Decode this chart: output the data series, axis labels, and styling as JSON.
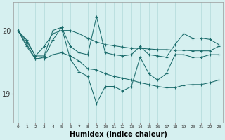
{
  "xlabel": "Humidex (Indice chaleur)",
  "bg_color": "#d6f0f0",
  "grid_color": "#b8dede",
  "line_color": "#1a6b6b",
  "xlim": [
    -0.5,
    23.5
  ],
  "ylim": [
    18.55,
    20.45
  ],
  "yticks": [
    19,
    20
  ],
  "xticks": [
    0,
    1,
    2,
    3,
    4,
    5,
    6,
    7,
    8,
    9,
    10,
    11,
    12,
    13,
    14,
    15,
    16,
    17,
    18,
    19,
    20,
    21,
    22,
    23
  ],
  "series": [
    [
      20.0,
      19.85,
      19.6,
      19.75,
      19.95,
      20.0,
      20.0,
      19.95,
      19.88,
      19.82,
      19.78,
      19.76,
      19.74,
      19.72,
      19.72,
      19.71,
      19.7,
      19.7,
      19.69,
      19.69,
      19.68,
      19.68,
      19.68,
      19.75
    ],
    [
      20.0,
      19.82,
      19.6,
      19.6,
      20.0,
      20.05,
      19.75,
      19.65,
      19.62,
      20.22,
      19.65,
      19.62,
      19.6,
      19.62,
      19.75,
      19.62,
      19.6,
      19.58,
      19.78,
      19.95,
      19.88,
      19.88,
      19.86,
      19.78
    ],
    [
      20.0,
      19.75,
      19.55,
      19.58,
      19.85,
      20.05,
      19.55,
      19.35,
      19.28,
      18.85,
      19.12,
      19.12,
      19.05,
      19.12,
      19.58,
      19.32,
      19.22,
      19.32,
      19.62,
      19.62,
      19.58,
      19.58,
      19.62,
      19.62
    ],
    [
      20.0,
      19.78,
      19.56,
      19.55,
      19.62,
      19.65,
      19.6,
      19.52,
      19.4,
      19.38,
      19.32,
      19.28,
      19.25,
      19.22,
      19.18,
      19.15,
      19.12,
      19.1,
      19.1,
      19.14,
      19.15,
      19.15,
      19.18,
      19.22
    ]
  ]
}
